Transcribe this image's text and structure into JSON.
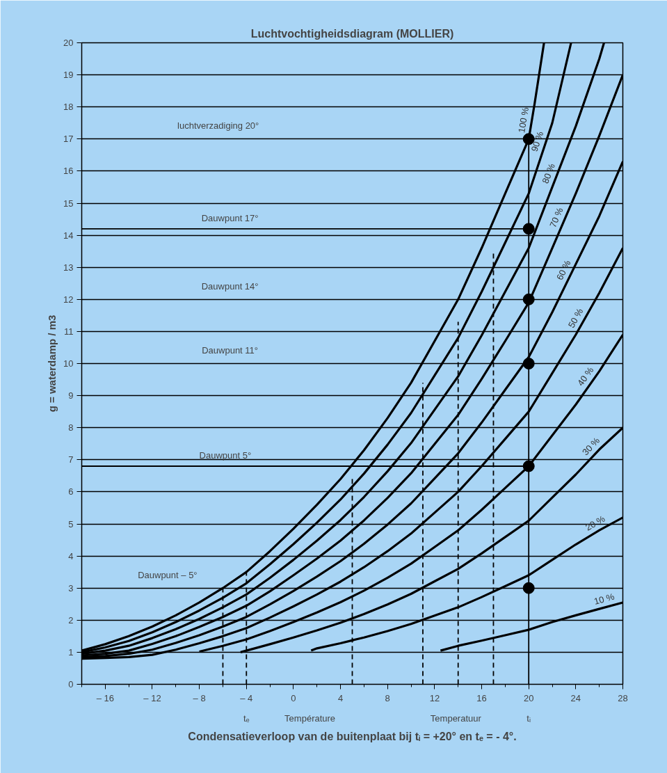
{
  "chart_data": {
    "type": "line",
    "title": "Luchtvochtigheidsdiagram (MOLLIER)",
    "ylabel": "g = waterdamp / m3",
    "xlim": [
      -18,
      28
    ],
    "ylim": [
      0,
      20
    ],
    "xticks": [
      {
        "value": -16,
        "label": "– 16"
      },
      {
        "value": -12,
        "label": "– 12"
      },
      {
        "value": -8,
        "label": "– 8"
      },
      {
        "value": -4,
        "label": "– 4"
      },
      0,
      4,
      8,
      12,
      16,
      20,
      24,
      28
    ],
    "yticks": [
      0,
      1,
      2,
      3,
      4,
      5,
      6,
      7,
      8,
      9,
      10,
      11,
      12,
      13,
      14,
      15,
      16,
      17,
      18,
      19,
      20
    ],
    "grid": "y",
    "series": [
      {
        "name": "100 %",
        "color": "#000000",
        "x": [
          -18,
          -16,
          -14,
          -12,
          -10,
          -8,
          -6,
          -4,
          -2,
          0,
          2,
          4,
          6,
          8,
          10,
          12,
          14,
          16,
          18,
          20,
          20.5,
          21.3
        ],
        "values": [
          1.05,
          1.25,
          1.5,
          1.8,
          2.15,
          2.55,
          3.0,
          3.5,
          4.15,
          4.85,
          5.6,
          6.4,
          7.3,
          8.3,
          9.4,
          10.7,
          12.0,
          13.6,
          15.3,
          17.0,
          18.1,
          20
        ]
      },
      {
        "name": "90 %",
        "color": "#000000",
        "x": [
          -18,
          -16,
          -14,
          -12,
          -10,
          -8,
          -6,
          -4,
          -2,
          0,
          2,
          4,
          6,
          8,
          10,
          12,
          14,
          16,
          18,
          20,
          22,
          23.6
        ],
        "values": [
          1.0,
          1.15,
          1.35,
          1.62,
          1.94,
          2.3,
          2.7,
          3.15,
          3.74,
          4.37,
          5.04,
          5.76,
          6.57,
          7.47,
          8.46,
          9.63,
          10.8,
          12.24,
          13.77,
          15.3,
          17.5,
          20
        ]
      },
      {
        "name": "80 %",
        "color": "#000000",
        "x": [
          -18,
          -16,
          -14,
          -12,
          -10,
          -8,
          -6,
          -4,
          -2,
          0,
          2,
          4,
          6,
          8,
          10,
          12,
          14,
          16,
          18,
          20,
          22,
          24,
          26,
          26.4
        ],
        "values": [
          0.95,
          1.05,
          1.2,
          1.44,
          1.72,
          2.04,
          2.4,
          2.8,
          3.32,
          3.88,
          4.48,
          5.12,
          5.84,
          6.64,
          7.52,
          8.56,
          9.6,
          10.88,
          12.24,
          13.6,
          15.5,
          17.4,
          19.5,
          20
        ]
      },
      {
        "name": "70 %",
        "color": "#000000",
        "x": [
          -18,
          -16,
          -14,
          -12,
          -10,
          -8,
          -6,
          -4,
          -2,
          0,
          2,
          4,
          6,
          8,
          10,
          12,
          14,
          16,
          18,
          20,
          22,
          24,
          26,
          28
        ],
        "values": [
          0.9,
          0.95,
          1.05,
          1.26,
          1.5,
          1.79,
          2.1,
          2.45,
          2.9,
          3.4,
          3.92,
          4.48,
          5.11,
          5.81,
          6.58,
          7.49,
          8.4,
          9.52,
          10.7,
          11.9,
          13.6,
          15.3,
          17.1,
          19.0
        ]
      },
      {
        "name": "60 %",
        "color": "#000000",
        "x": [
          -18,
          -16,
          -14,
          -12,
          -10,
          -8,
          -6,
          -4,
          -2,
          0,
          2,
          4,
          6,
          8,
          10,
          12,
          14,
          16,
          18,
          20,
          22,
          24,
          26,
          28
        ],
        "values": [
          0.85,
          0.88,
          0.95,
          1.08,
          1.29,
          1.53,
          1.8,
          2.1,
          2.49,
          2.91,
          3.36,
          3.84,
          4.38,
          4.98,
          5.64,
          6.42,
          7.2,
          8.16,
          9.18,
          10.2,
          11.6,
          13.1,
          14.6,
          16.3
        ]
      },
      {
        "name": "50 %",
        "color": "#000000",
        "x": [
          -18,
          -16,
          -14,
          -12,
          -10,
          -8,
          -6,
          -4,
          -2,
          0,
          2,
          4,
          6,
          8,
          10,
          12,
          14,
          16,
          18,
          20,
          22,
          24,
          26,
          28
        ],
        "values": [
          0.8,
          0.82,
          0.85,
          0.92,
          1.08,
          1.28,
          1.5,
          1.75,
          2.08,
          2.43,
          2.8,
          3.2,
          3.65,
          4.15,
          4.7,
          5.35,
          6.0,
          6.8,
          7.65,
          8.5,
          9.7,
          10.9,
          12.2,
          13.6
        ]
      },
      {
        "name": "40 %",
        "color": "#000000",
        "x": [
          -8,
          -6,
          -4,
          -2,
          0,
          2,
          4,
          6,
          8,
          10,
          12,
          14,
          16,
          18,
          20,
          22,
          24,
          26,
          28
        ],
        "values": [
          1.02,
          1.2,
          1.4,
          1.66,
          1.94,
          2.24,
          2.56,
          2.92,
          3.32,
          3.76,
          4.28,
          4.8,
          5.44,
          6.12,
          6.8,
          7.76,
          8.72,
          9.76,
          10.9
        ]
      },
      {
        "name": "30 %",
        "color": "#000000",
        "x": [
          -4.5,
          -4,
          -2,
          0,
          2,
          4,
          6,
          8,
          10,
          12,
          14,
          16,
          18,
          20,
          22,
          24,
          26,
          28
        ],
        "values": [
          1.0,
          1.05,
          1.25,
          1.46,
          1.68,
          1.92,
          2.19,
          2.49,
          2.82,
          3.21,
          3.6,
          4.08,
          4.59,
          5.1,
          5.82,
          6.54,
          7.32,
          8.0
        ]
      },
      {
        "name": "20 %",
        "color": "#000000",
        "x": [
          1.5,
          2,
          4,
          6,
          8,
          10,
          12,
          14,
          16,
          18,
          20,
          22,
          24,
          26,
          28
        ],
        "values": [
          1.05,
          1.12,
          1.28,
          1.46,
          1.66,
          1.88,
          2.14,
          2.4,
          2.72,
          3.06,
          3.4,
          3.88,
          4.36,
          4.8,
          5.2
        ]
      },
      {
        "name": "10 %",
        "color": "#000000",
        "x": [
          12.5,
          14,
          16,
          18,
          20,
          22,
          24,
          26,
          28
        ],
        "values": [
          1.05,
          1.2,
          1.36,
          1.53,
          1.7,
          1.94,
          2.15,
          2.35,
          2.55
        ]
      },
      {
        "color": "#000000",
        "line_style": "dashed",
        "x": [
          -6,
          -6
        ],
        "values": [
          0,
          3.0
        ]
      },
      {
        "color": "#000000",
        "line_style": "dashed",
        "x": [
          -4,
          -4
        ],
        "values": [
          0,
          3.6
        ]
      },
      {
        "color": "#000000",
        "line_style": "dashed",
        "x": [
          5,
          5
        ],
        "values": [
          0,
          6.4
        ]
      },
      {
        "color": "#000000",
        "line_style": "dashed",
        "x": [
          11,
          11
        ],
        "values": [
          0,
          9.4
        ]
      },
      {
        "color": "#000000",
        "line_style": "dashed",
        "x": [
          14,
          14
        ],
        "values": [
          0,
          11.3
        ]
      },
      {
        "color": "#000000",
        "line_style": "dashed",
        "x": [
          17,
          17
        ],
        "values": [
          0,
          13.5
        ]
      },
      {
        "color": "#000000",
        "line_style": "solid",
        "x": [
          20,
          20
        ],
        "values": [
          0,
          17
        ]
      },
      {
        "color": "#000000",
        "line_style": "solid",
        "x": [
          -18,
          20
        ],
        "values": [
          14.2,
          14.2
        ]
      },
      {
        "color": "#000000",
        "line_style": "solid",
        "x": [
          -18,
          20
        ],
        "values": [
          6.8,
          6.8
        ]
      },
      {
        "type": "scatter",
        "marker": "circle",
        "color": "#000000",
        "x": [
          20,
          20,
          20,
          20,
          20,
          20
        ],
        "values": [
          17,
          14.2,
          12,
          10,
          6.8,
          3
        ]
      }
    ],
    "annotations": [
      "luchtverzadiging 20°",
      {
        "text": "Dauwpunt 17°",
        "x": -5.4,
        "y": 14.2
      },
      "Dauwpunt 14°",
      "Dauwpunt 11°",
      {
        "text": "Dauwpunt 5°",
        "x": -5.8,
        "y": 6.8
      },
      "Dauwpunt  – 5°",
      "tₑ",
      "Température",
      "Temperatuur",
      "tᵢ",
      "Condensatieverloop van de buitenplaat bij tᵢ = +20° en tₑ = - 4°."
    ]
  }
}
